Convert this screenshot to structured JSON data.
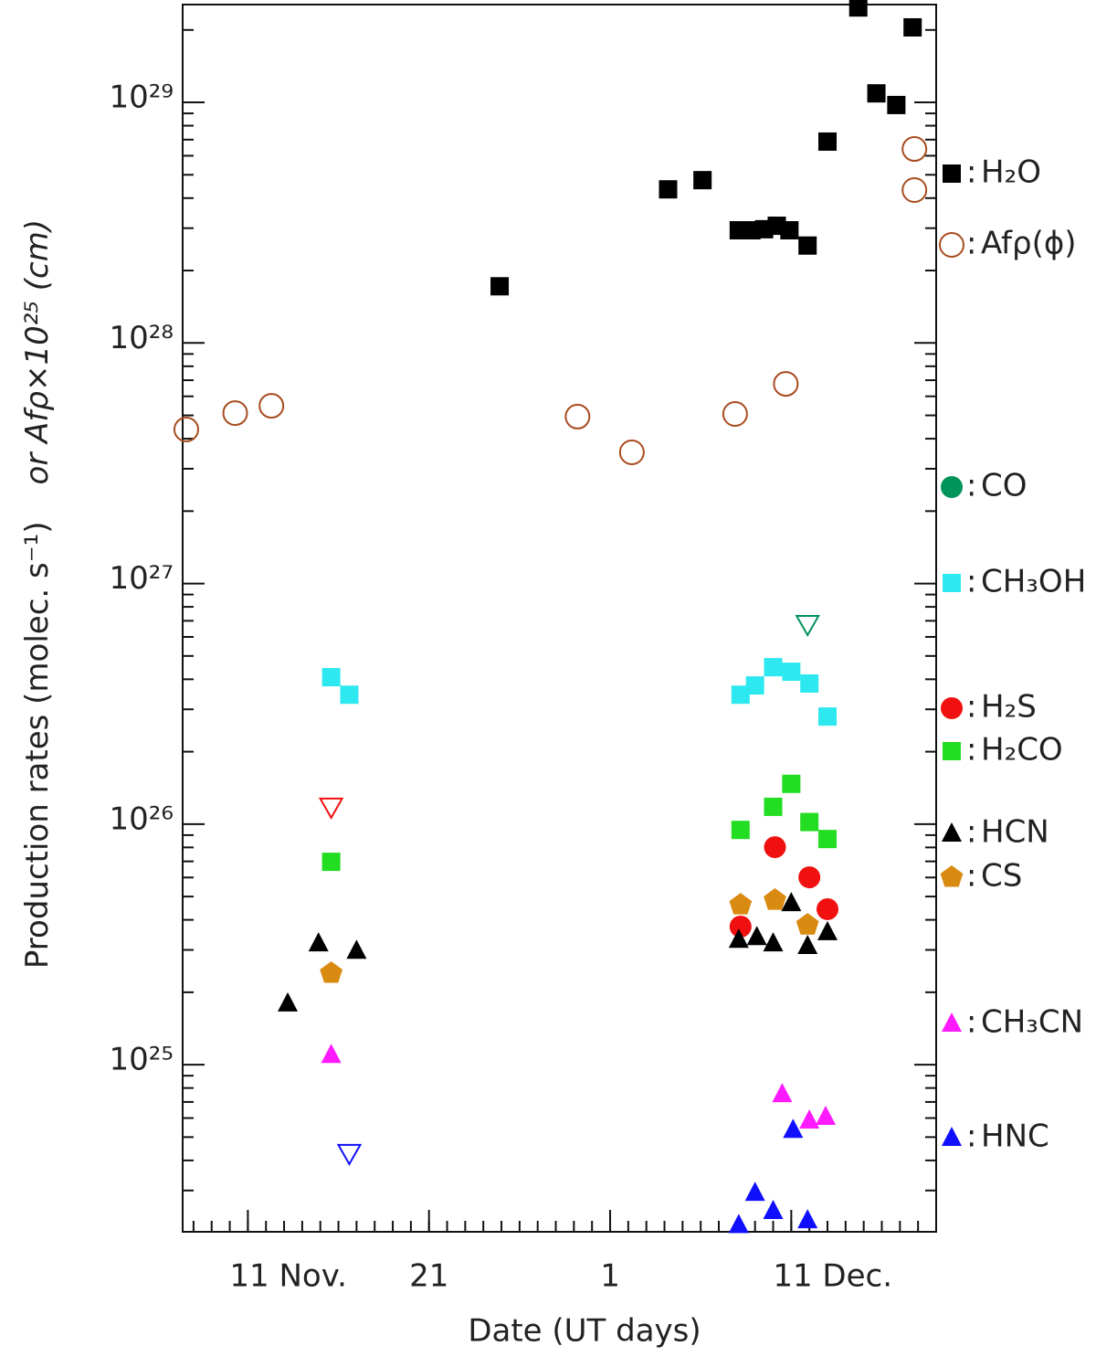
{
  "chart_data": {
    "type": "scatter",
    "xlabel": "Date (UT days)",
    "ylabel": "Production rates (molec. s⁻¹)",
    "ylabel2": "or Afρ×10²⁵ (cm)",
    "legend_separator": ":",
    "log_y": true,
    "legend": "right",
    "xlim": [
      7.4,
      49.0
    ],
    "xticks": [
      {
        "value": 11,
        "label": "11 Nov."
      },
      21,
      {
        "value": 31,
        "label": "1"
      },
      {
        "value": 41,
        "label": "11 Dec."
      }
    ],
    "xminor_ticks": [
      8,
      9,
      10,
      11,
      12,
      13,
      14,
      15,
      16,
      17,
      18,
      19,
      20,
      21,
      22,
      23,
      24,
      25,
      26,
      27,
      28,
      29,
      30,
      31,
      32,
      33,
      34,
      35,
      36,
      37,
      38,
      39,
      40,
      41,
      42,
      43,
      44,
      45,
      46,
      47,
      48,
      49
    ],
    "ylim": [
      2.02e+24,
      2.55e+29
    ],
    "yticks": [
      {
        "value": 1e+25,
        "label": "10²⁵"
      },
      {
        "value": 1e+26,
        "label": "10²⁶"
      },
      {
        "value": 1e+27,
        "label": "10²⁷"
      },
      {
        "value": 1e+28,
        "label": "10²⁸"
      },
      {
        "value": 1e+29,
        "label": "10²⁹"
      }
    ],
    "yminor_ticks": [
      3e+24,
      4e+24,
      5e+24,
      6e+24,
      7e+24,
      8e+24,
      9e+24,
      2e+25,
      3e+25,
      4e+25,
      5e+25,
      6e+25,
      7e+25,
      8e+25,
      9e+25,
      2e+26,
      3e+26,
      4e+26,
      5e+26,
      6e+26,
      7e+26,
      8e+26,
      9e+26,
      2e+27,
      3e+27,
      4e+27,
      5e+27,
      6e+27,
      7e+27,
      8e+27,
      9e+27,
      2e+28,
      3e+28,
      4e+28,
      5e+28,
      6e+28,
      7e+28,
      8e+28,
      9e+28,
      2e+29
    ],
    "series": [
      {
        "name": "H₂O",
        "color": "#000000",
        "marker": "square",
        "x": [
          24.9,
          34.2,
          36.1,
          38.1,
          38.8,
          39.5,
          40.2,
          40.9,
          41.9,
          43.0,
          44.7,
          45.7,
          46.8,
          47.7
        ],
        "values": [
          1.72e+28,
          4.35e+28,
          4.75e+28,
          2.94e+28,
          2.94e+28,
          2.97e+28,
          3.07e+28,
          2.94e+28,
          2.54e+28,
          6.87e+28,
          2.48e+29,
          1.09e+29,
          9.75e+28,
          2.05e+29
        ]
      },
      {
        "name": "Afρ(ϕ)",
        "color": "#a84c20",
        "marker": "open-circle",
        "x": [
          7.6,
          10.3,
          12.3,
          29.2,
          32.2,
          37.9,
          40.7,
          47.8,
          47.8
        ],
        "values": [
          4.37e+27,
          5.11e+27,
          5.48e+27,
          4.94e+27,
          3.51e+27,
          5.07e+27,
          6.76e+27,
          6.4e+28,
          4.32e+28
        ]
      },
      {
        "name": "CO",
        "color": "#00935a",
        "marker": "circle",
        "x": [],
        "values": [],
        "upper_limits": {
          "x": [
            41.9
          ],
          "values": [
            6.78e+26
          ]
        }
      },
      {
        "name": "CH₃OH",
        "color": "#2ee8f0",
        "marker": "square",
        "x": [
          15.6,
          16.6,
          38.2,
          39.0,
          40.0,
          41.0,
          42.0,
          43.0
        ],
        "values": [
          4.08e+26,
          3.45e+26,
          3.45e+26,
          3.77e+26,
          4.49e+26,
          4.3e+26,
          3.84e+26,
          2.8e+26
        ]
      },
      {
        "name": "H₂S",
        "color": "#f01010",
        "marker": "circle",
        "x": [
          38.2,
          40.1,
          42.0,
          43.0
        ],
        "values": [
          3.75e+25,
          8.02e+25,
          6.01e+25,
          4.43e+25
        ],
        "upper_limits": {
          "x": [
            15.6
          ],
          "values": [
            1.18e+26
          ]
        }
      },
      {
        "name": "H₂CO",
        "color": "#22dd22",
        "marker": "square",
        "x": [
          15.6,
          38.2,
          40.0,
          41.0,
          42.0,
          43.0
        ],
        "values": [
          6.97e+25,
          9.46e+25,
          1.18e+26,
          1.47e+26,
          1.02e+26,
          8.67e+25
        ]
      },
      {
        "name": "HCN",
        "color": "#000000",
        "marker": "triangle",
        "x": [
          13.2,
          14.9,
          17.0,
          38.1,
          39.1,
          40.0,
          41.0,
          41.9,
          43.0
        ],
        "values": [
          1.8e+25,
          3.2e+25,
          2.98e+25,
          3.31e+25,
          3.4e+25,
          3.2e+25,
          4.7e+25,
          3.12e+25,
          3.56e+25
        ]
      },
      {
        "name": "CS",
        "color": "#d98a10",
        "marker": "pentagon",
        "x": [
          15.6,
          38.2,
          40.1,
          41.9
        ],
        "values": [
          2.4e+25,
          4.62e+25,
          4.83e+25,
          3.81e+25
        ]
      },
      {
        "name": "CH₃CN",
        "color": "#ff1aff",
        "marker": "triangle",
        "x": [
          15.6,
          40.5,
          42.0,
          42.9
        ],
        "values": [
          1.1e+25,
          7.56e+24,
          5.87e+24,
          6.08e+24
        ]
      },
      {
        "name": "HNC",
        "color": "#1010ff",
        "marker": "triangle",
        "x": [
          38.1,
          39.0,
          40.0,
          41.1,
          41.9
        ],
        "values": [
          2.16e+24,
          2.94e+24,
          2.47e+24,
          5.37e+24,
          2.26e+24
        ],
        "upper_limits": {
          "x": [
            16.6
          ],
          "values": [
            4.29e+24
          ]
        }
      }
    ]
  }
}
